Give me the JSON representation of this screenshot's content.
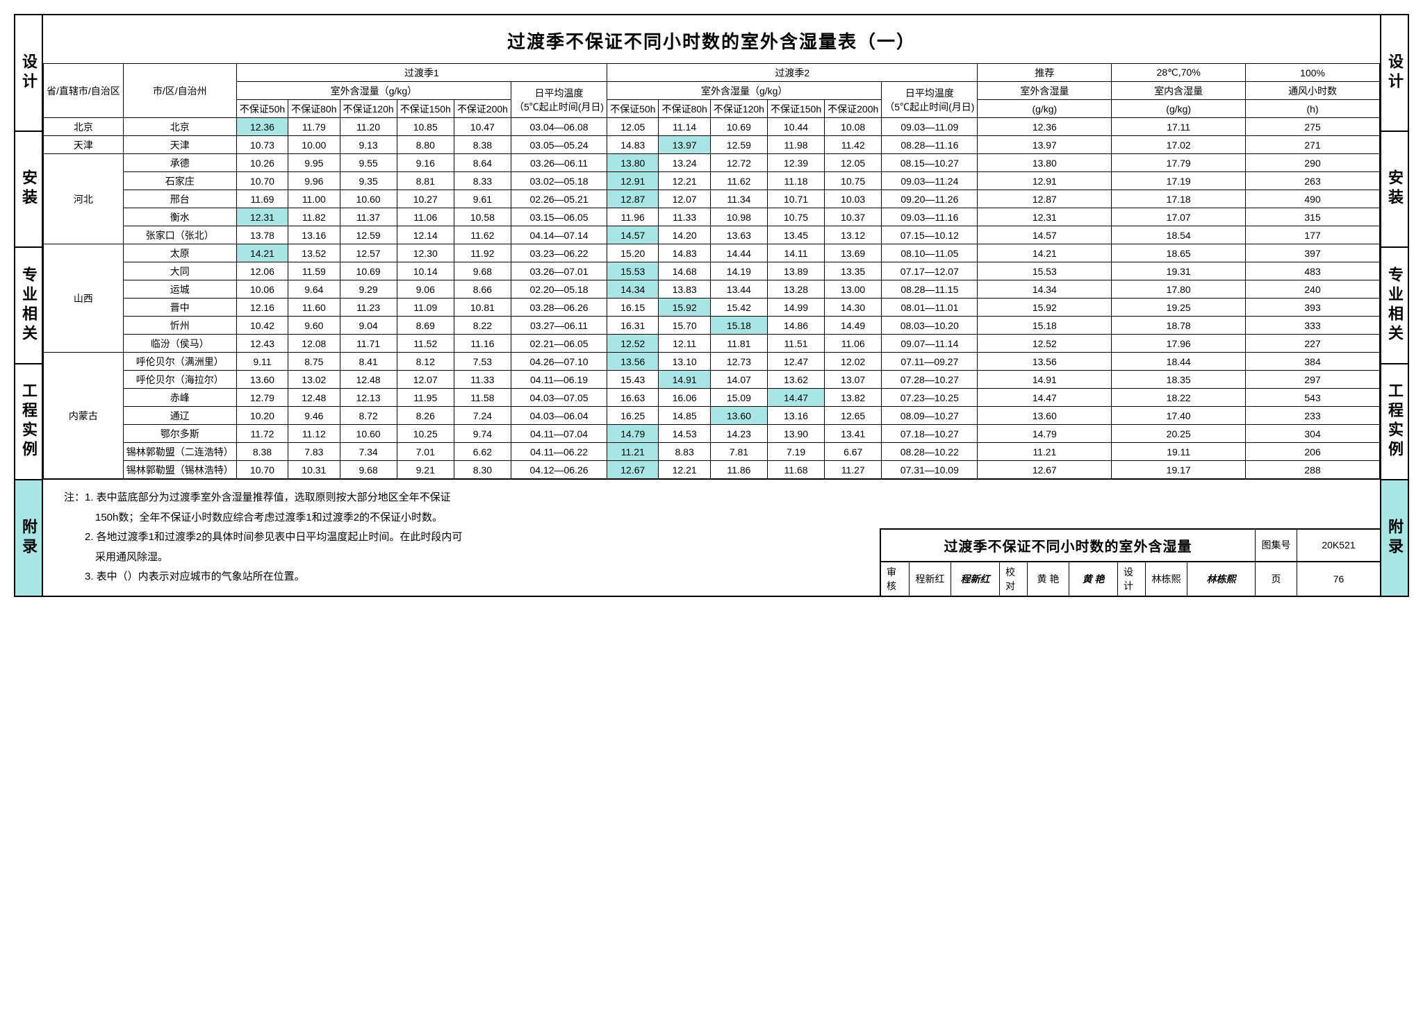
{
  "title": "过渡季不保证不同小时数的室外含湿量表（一）",
  "side_labels": [
    "设计",
    "安装",
    "专业相关",
    "工程实例",
    "附录"
  ],
  "highlight_side_index": 4,
  "highlight_color": "#a8e6e6",
  "headers": {
    "province": "省/直辖市/自治区",
    "city": "市/区/自治州",
    "season1": "过渡季1",
    "season2": "过渡季2",
    "humidity_group": "室外含湿量（g/kg）",
    "avg_temp": "日平均温度\n（5℃<t≤23℃）\n起止时间(月日)",
    "cols": [
      "不保证50h",
      "不保证80h",
      "不保证120h",
      "不保证150h",
      "不保证200h"
    ],
    "rec": "推荐",
    "rec_unit": "室外含湿量",
    "indoor": "28℃,70%",
    "indoor_unit": "室内含湿量",
    "vent": "100%",
    "vent_unit": "通风小时数",
    "gkg": "(g/kg)",
    "h": "(h)"
  },
  "rows": [
    {
      "province": "北京",
      "rowspan": 1,
      "city": "北京",
      "s1": [
        "12.36",
        "11.79",
        "11.20",
        "10.85",
        "10.47"
      ],
      "d1": "03.04—06.08",
      "s2": [
        "12.05",
        "11.14",
        "10.69",
        "10.44",
        "10.08"
      ],
      "d2": "09.03—11.09",
      "rec": "12.36",
      "ind": "17.11",
      "vent": "275",
      "hl_s1": [
        0
      ],
      "hl_s2": []
    },
    {
      "province": "天津",
      "rowspan": 1,
      "city": "天津",
      "s1": [
        "10.73",
        "10.00",
        "9.13",
        "8.80",
        "8.38"
      ],
      "d1": "03.05—05.24",
      "s2": [
        "14.83",
        "13.97",
        "12.59",
        "11.98",
        "11.42"
      ],
      "d2": "08.28—11.16",
      "rec": "13.97",
      "ind": "17.02",
      "vent": "271",
      "hl_s1": [],
      "hl_s2": [
        1
      ]
    },
    {
      "province": "河北",
      "rowspan": 5,
      "city": "承德",
      "s1": [
        "10.26",
        "9.95",
        "9.55",
        "9.16",
        "8.64"
      ],
      "d1": "03.26—06.11",
      "s2": [
        "13.80",
        "13.24",
        "12.72",
        "12.39",
        "12.05"
      ],
      "d2": "08.15—10.27",
      "rec": "13.80",
      "ind": "17.79",
      "vent": "290",
      "hl_s1": [],
      "hl_s2": [
        0
      ]
    },
    {
      "city": "石家庄",
      "s1": [
        "10.70",
        "9.96",
        "9.35",
        "8.81",
        "8.33"
      ],
      "d1": "03.02—05.18",
      "s2": [
        "12.91",
        "12.21",
        "11.62",
        "11.18",
        "10.75"
      ],
      "d2": "09.03—11.24",
      "rec": "12.91",
      "ind": "17.19",
      "vent": "263",
      "hl_s1": [],
      "hl_s2": [
        0
      ]
    },
    {
      "city": "邢台",
      "s1": [
        "11.69",
        "11.00",
        "10.60",
        "10.27",
        "9.61"
      ],
      "d1": "02.26—05.21",
      "s2": [
        "12.87",
        "12.07",
        "11.34",
        "10.71",
        "10.03"
      ],
      "d2": "09.20—11.26",
      "rec": "12.87",
      "ind": "17.18",
      "vent": "490",
      "hl_s1": [],
      "hl_s2": [
        0
      ]
    },
    {
      "city": "衡水",
      "s1": [
        "12.31",
        "11.82",
        "11.37",
        "11.06",
        "10.58"
      ],
      "d1": "03.15—06.05",
      "s2": [
        "11.96",
        "11.33",
        "10.98",
        "10.75",
        "10.37"
      ],
      "d2": "09.03—11.16",
      "rec": "12.31",
      "ind": "17.07",
      "vent": "315",
      "hl_s1": [
        0
      ],
      "hl_s2": []
    },
    {
      "city": "张家口（张北）",
      "s1": [
        "13.78",
        "13.16",
        "12.59",
        "12.14",
        "11.62"
      ],
      "d1": "04.14—07.14",
      "s2": [
        "14.57",
        "14.20",
        "13.63",
        "13.45",
        "13.12"
      ],
      "d2": "07.15—10.12",
      "rec": "14.57",
      "ind": "18.54",
      "vent": "177",
      "hl_s1": [],
      "hl_s2": [
        0
      ]
    },
    {
      "province": "山西",
      "rowspan": 6,
      "city": "太原",
      "s1": [
        "14.21",
        "13.52",
        "12.57",
        "12.30",
        "11.92"
      ],
      "d1": "03.23—06.22",
      "s2": [
        "15.20",
        "14.83",
        "14.44",
        "14.11",
        "13.69"
      ],
      "d2": "08.10—11.05",
      "rec": "14.21",
      "ind": "18.65",
      "vent": "397",
      "hl_s1": [
        0
      ],
      "hl_s2": []
    },
    {
      "city": "大同",
      "s1": [
        "12.06",
        "11.59",
        "10.69",
        "10.14",
        "9.68"
      ],
      "d1": "03.26—07.01",
      "s2": [
        "15.53",
        "14.68",
        "14.19",
        "13.89",
        "13.35"
      ],
      "d2": "07.17—12.07",
      "rec": "15.53",
      "ind": "19.31",
      "vent": "483",
      "hl_s1": [],
      "hl_s2": [
        0
      ]
    },
    {
      "city": "运城",
      "s1": [
        "10.06",
        "9.64",
        "9.29",
        "9.06",
        "8.66"
      ],
      "d1": "02.20—05.18",
      "s2": [
        "14.34",
        "13.83",
        "13.44",
        "13.28",
        "13.00"
      ],
      "d2": "08.28—11.15",
      "rec": "14.34",
      "ind": "17.80",
      "vent": "240",
      "hl_s1": [],
      "hl_s2": [
        0
      ]
    },
    {
      "city": "晋中",
      "s1": [
        "12.16",
        "11.60",
        "11.23",
        "11.09",
        "10.81"
      ],
      "d1": "03.28—06.26",
      "s2": [
        "16.15",
        "15.92",
        "15.42",
        "14.99",
        "14.30"
      ],
      "d2": "08.01—11.01",
      "rec": "15.92",
      "ind": "19.25",
      "vent": "393",
      "hl_s1": [],
      "hl_s2": [
        1
      ]
    },
    {
      "city": "忻州",
      "s1": [
        "10.42",
        "9.60",
        "9.04",
        "8.69",
        "8.22"
      ],
      "d1": "03.27—06.11",
      "s2": [
        "16.31",
        "15.70",
        "15.18",
        "14.86",
        "14.49"
      ],
      "d2": "08.03—10.20",
      "rec": "15.18",
      "ind": "18.78",
      "vent": "333",
      "hl_s1": [],
      "hl_s2": [
        2
      ]
    },
    {
      "city": "临汾（侯马）",
      "s1": [
        "12.43",
        "12.08",
        "11.71",
        "11.52",
        "11.16"
      ],
      "d1": "02.21—06.05",
      "s2": [
        "12.52",
        "12.11",
        "11.81",
        "11.51",
        "11.06"
      ],
      "d2": "09.07—11.14",
      "rec": "12.52",
      "ind": "17.96",
      "vent": "227",
      "hl_s1": [],
      "hl_s2": [
        0
      ]
    },
    {
      "province": "内蒙古",
      "rowspan": 7,
      "city": "呼伦贝尔（满洲里）",
      "s1": [
        "9.11",
        "8.75",
        "8.41",
        "8.12",
        "7.53"
      ],
      "d1": "04.26—07.10",
      "s2": [
        "13.56",
        "13.10",
        "12.73",
        "12.47",
        "12.02"
      ],
      "d2": "07.11—09.27",
      "rec": "13.56",
      "ind": "18.44",
      "vent": "384",
      "hl_s1": [],
      "hl_s2": [
        0
      ]
    },
    {
      "city": "呼伦贝尔（海拉尔）",
      "s1": [
        "13.60",
        "13.02",
        "12.48",
        "12.07",
        "11.33"
      ],
      "d1": "04.11—06.19",
      "s2": [
        "15.43",
        "14.91",
        "14.07",
        "13.62",
        "13.07"
      ],
      "d2": "07.28—10.27",
      "rec": "14.91",
      "ind": "18.35",
      "vent": "297",
      "hl_s1": [],
      "hl_s2": [
        1
      ]
    },
    {
      "city": "赤峰",
      "s1": [
        "12.79",
        "12.48",
        "12.13",
        "11.95",
        "11.58"
      ],
      "d1": "04.03—07.05",
      "s2": [
        "16.63",
        "16.06",
        "15.09",
        "14.47",
        "13.82"
      ],
      "d2": "07.23—10.25",
      "rec": "14.47",
      "ind": "18.22",
      "vent": "543",
      "hl_s1": [],
      "hl_s2": [
        3
      ]
    },
    {
      "city": "通辽",
      "s1": [
        "10.20",
        "9.46",
        "8.72",
        "8.26",
        "7.24"
      ],
      "d1": "04.03—06.04",
      "s2": [
        "16.25",
        "14.85",
        "13.60",
        "13.16",
        "12.65"
      ],
      "d2": "08.09—10.27",
      "rec": "13.60",
      "ind": "17.40",
      "vent": "233",
      "hl_s1": [],
      "hl_s2": [
        2
      ]
    },
    {
      "city": "鄂尔多斯",
      "s1": [
        "11.72",
        "11.12",
        "10.60",
        "10.25",
        "9.74"
      ],
      "d1": "04.11—07.04",
      "s2": [
        "14.79",
        "14.53",
        "14.23",
        "13.90",
        "13.41"
      ],
      "d2": "07.18—10.27",
      "rec": "14.79",
      "ind": "20.25",
      "vent": "304",
      "hl_s1": [],
      "hl_s2": [
        0
      ]
    },
    {
      "city": "锡林郭勒盟（二连浩特）",
      "s1": [
        "8.38",
        "7.83",
        "7.34",
        "7.01",
        "6.62"
      ],
      "d1": "04.11—06.22",
      "s2": [
        "11.21",
        "8.83",
        "7.81",
        "7.19",
        "6.67"
      ],
      "d2": "08.28—10.22",
      "rec": "11.21",
      "ind": "19.11",
      "vent": "206",
      "hl_s1": [],
      "hl_s2": [
        0
      ]
    },
    {
      "city": "锡林郭勒盟（锡林浩特）",
      "s1": [
        "10.70",
        "10.31",
        "9.68",
        "9.21",
        "8.30"
      ],
      "d1": "04.12—06.26",
      "s2": [
        "12.67",
        "12.21",
        "11.86",
        "11.68",
        "11.27"
      ],
      "d2": "07.31—10.09",
      "rec": "12.67",
      "ind": "19.17",
      "vent": "288",
      "hl_s1": [],
      "hl_s2": [
        0
      ]
    }
  ],
  "notes": [
    "注：1. 表中蓝底部分为过渡季室外含湿量推荐值，选取原则按大部分地区全年不保证",
    "　　　150h数；全年不保证小时数应综合考虑过渡季1和过渡季2的不保证小时数。",
    "　　2. 各地过渡季1和过渡季2的具体时间参见表中日平均温度起止时间。在此时段内可",
    "　　　采用通风除湿。",
    "　　3. 表中（）内表示对应城市的气象站所在位置。"
  ],
  "meta": {
    "doc_title": "过渡季不保证不同小时数的室外含湿量",
    "set_label": "图集号",
    "set_no": "20K521",
    "review": "审核",
    "reviewer": "程新红",
    "check": "校对",
    "checker": "黄 艳",
    "design": "设计",
    "designer": "林栋熙",
    "page_label": "页",
    "page_no": "76"
  }
}
